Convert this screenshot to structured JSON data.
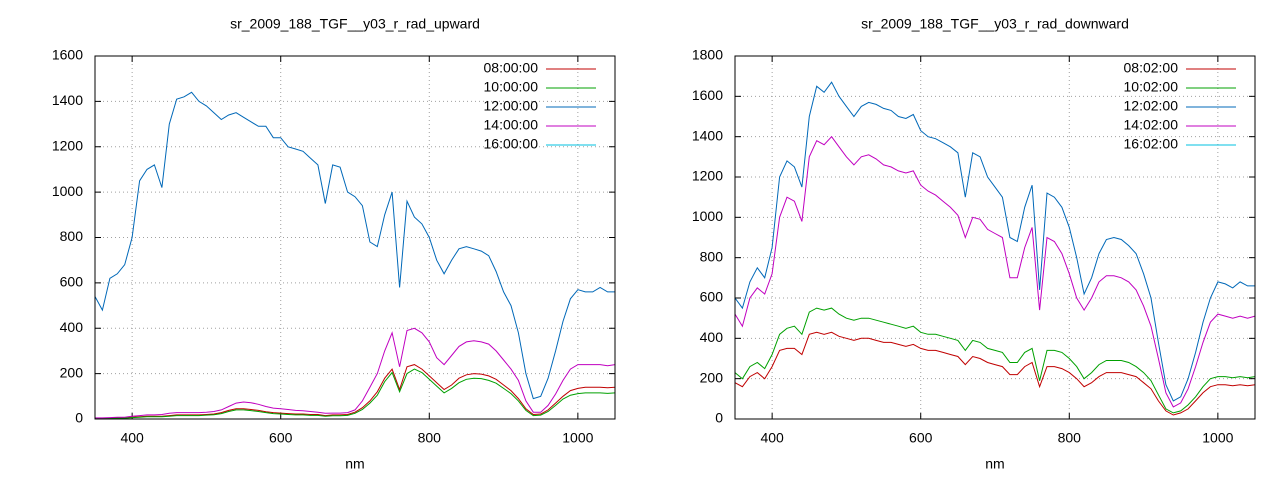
{
  "chart_data": [
    {
      "type": "line",
      "title": "sr_2009_188_TGF__y03_r_rad_upward",
      "x_label": "nm",
      "xlim": [
        350,
        1050
      ],
      "xticks": [
        400,
        600,
        800,
        1000
      ],
      "ylim": [
        0,
        1600
      ],
      "yticks": [
        0,
        200,
        400,
        600,
        800,
        1000,
        1200,
        1400,
        1600
      ],
      "grid": true,
      "legend": "upper-right",
      "x": [
        350,
        360,
        370,
        380,
        390,
        400,
        410,
        420,
        430,
        440,
        450,
        460,
        470,
        480,
        490,
        500,
        510,
        520,
        530,
        540,
        550,
        560,
        570,
        580,
        590,
        600,
        610,
        620,
        630,
        640,
        650,
        660,
        670,
        680,
        690,
        700,
        710,
        720,
        730,
        740,
        750,
        760,
        770,
        780,
        790,
        800,
        810,
        820,
        830,
        840,
        850,
        860,
        870,
        880,
        890,
        900,
        910,
        920,
        930,
        940,
        950,
        960,
        970,
        980,
        990,
        1000,
        1010,
        1020,
        1030,
        1040,
        1050
      ],
      "series": [
        {
          "name": "08:00:00",
          "color": "#c00000",
          "values": [
            3,
            3,
            4,
            5,
            5,
            8,
            10,
            12,
            12,
            12,
            15,
            18,
            18,
            18,
            18,
            20,
            22,
            28,
            38,
            45,
            45,
            42,
            38,
            32,
            28,
            26,
            24,
            22,
            22,
            20,
            20,
            15,
            18,
            18,
            20,
            30,
            50,
            80,
            120,
            180,
            220,
            130,
            230,
            240,
            220,
            190,
            160,
            130,
            150,
            180,
            195,
            200,
            198,
            190,
            175,
            150,
            125,
            90,
            45,
            20,
            22,
            40,
            70,
            100,
            125,
            135,
            140,
            140,
            140,
            138,
            140
          ]
        },
        {
          "name": "10:00:00",
          "color": "#00a000",
          "values": [
            2,
            2,
            3,
            4,
            4,
            6,
            8,
            10,
            10,
            10,
            12,
            15,
            15,
            15,
            15,
            17,
            19,
            24,
            33,
            40,
            40,
            37,
            33,
            28,
            24,
            22,
            20,
            18,
            18,
            16,
            16,
            12,
            14,
            14,
            16,
            25,
            42,
            70,
            105,
            165,
            205,
            120,
            200,
            220,
            205,
            175,
            145,
            115,
            135,
            160,
            175,
            180,
            178,
            170,
            158,
            135,
            112,
            80,
            38,
            15,
            17,
            33,
            60,
            88,
            105,
            112,
            115,
            115,
            115,
            113,
            115
          ]
        },
        {
          "name": "12:00:00",
          "color": "#0068b8",
          "values": [
            540,
            480,
            620,
            640,
            680,
            800,
            1050,
            1100,
            1120,
            1020,
            1300,
            1410,
            1420,
            1440,
            1400,
            1380,
            1350,
            1320,
            1340,
            1350,
            1330,
            1310,
            1290,
            1290,
            1240,
            1240,
            1200,
            1190,
            1180,
            1150,
            1120,
            950,
            1120,
            1110,
            1000,
            980,
            940,
            780,
            760,
            900,
            1000,
            580,
            960,
            890,
            860,
            800,
            700,
            640,
            700,
            750,
            760,
            750,
            740,
            720,
            650,
            560,
            500,
            380,
            200,
            90,
            100,
            180,
            300,
            430,
            530,
            570,
            560,
            560,
            580,
            560,
            560
          ]
        },
        {
          "name": "14:00:00",
          "color": "#c000c0",
          "values": [
            5,
            5,
            6,
            8,
            8,
            12,
            15,
            18,
            18,
            20,
            25,
            28,
            28,
            28,
            28,
            30,
            33,
            40,
            55,
            70,
            75,
            72,
            65,
            55,
            48,
            45,
            42,
            38,
            36,
            33,
            30,
            25,
            26,
            26,
            28,
            40,
            80,
            140,
            200,
            300,
            380,
            230,
            390,
            400,
            380,
            340,
            270,
            240,
            280,
            320,
            340,
            345,
            340,
            330,
            300,
            260,
            220,
            170,
            80,
            30,
            30,
            60,
            110,
            170,
            220,
            240,
            240,
            240,
            240,
            235,
            240
          ]
        },
        {
          "name": "16:00:00",
          "color": "#00c0e0",
          "values": [
            0,
            0,
            0,
            0,
            0,
            0,
            0,
            0,
            0,
            0,
            0,
            0,
            0,
            0,
            0,
            0,
            0,
            0,
            0,
            0,
            0,
            0,
            0,
            0,
            0,
            0,
            0,
            0,
            0,
            0,
            0,
            0,
            0,
            0,
            0,
            0,
            0,
            0,
            0,
            0,
            0,
            0,
            0,
            0,
            0,
            0,
            0,
            0,
            0,
            0,
            0,
            0,
            0,
            0,
            0,
            0,
            0,
            0,
            0,
            0,
            0,
            0,
            0,
            0,
            0,
            0,
            0,
            0,
            0,
            0,
            0
          ]
        }
      ]
    },
    {
      "type": "line",
      "title": "sr_2009_188_TGF__y03_r_rad_downward",
      "x_label": "nm",
      "xlim": [
        350,
        1050
      ],
      "xticks": [
        400,
        600,
        800,
        1000
      ],
      "ylim": [
        0,
        1800
      ],
      "yticks": [
        0,
        200,
        400,
        600,
        800,
        1000,
        1200,
        1400,
        1600,
        1800
      ],
      "grid": true,
      "legend": "upper-right",
      "x": [
        350,
        360,
        370,
        380,
        390,
        400,
        410,
        420,
        430,
        440,
        450,
        460,
        470,
        480,
        490,
        500,
        510,
        520,
        530,
        540,
        550,
        560,
        570,
        580,
        590,
        600,
        610,
        620,
        630,
        640,
        650,
        660,
        670,
        680,
        690,
        700,
        710,
        720,
        730,
        740,
        750,
        760,
        770,
        780,
        790,
        800,
        810,
        820,
        830,
        840,
        850,
        860,
        870,
        880,
        890,
        900,
        910,
        920,
        930,
        940,
        950,
        960,
        970,
        980,
        990,
        1000,
        1010,
        1020,
        1030,
        1040,
        1050
      ],
      "series": [
        {
          "name": "08:02:00",
          "color": "#c00000",
          "values": [
            180,
            160,
            210,
            230,
            200,
            260,
            340,
            350,
            350,
            320,
            420,
            430,
            420,
            430,
            410,
            400,
            390,
            400,
            400,
            390,
            380,
            380,
            370,
            360,
            370,
            350,
            340,
            340,
            330,
            320,
            310,
            270,
            310,
            300,
            280,
            270,
            260,
            220,
            220,
            260,
            280,
            160,
            260,
            260,
            250,
            230,
            200,
            160,
            180,
            210,
            230,
            230,
            230,
            220,
            210,
            180,
            150,
            90,
            40,
            20,
            30,
            50,
            90,
            130,
            160,
            170,
            170,
            165,
            170,
            165,
            170
          ]
        },
        {
          "name": "10:02:00",
          "color": "#00a000",
          "values": [
            230,
            200,
            260,
            280,
            250,
            320,
            420,
            450,
            460,
            420,
            530,
            550,
            540,
            550,
            520,
            500,
            490,
            500,
            500,
            490,
            480,
            470,
            460,
            450,
            460,
            430,
            420,
            420,
            410,
            400,
            390,
            340,
            390,
            380,
            350,
            340,
            330,
            280,
            280,
            330,
            350,
            190,
            340,
            340,
            330,
            300,
            260,
            200,
            230,
            270,
            290,
            290,
            290,
            280,
            260,
            230,
            190,
            120,
            50,
            30,
            40,
            70,
            110,
            160,
            200,
            210,
            210,
            205,
            210,
            205,
            210
          ]
        },
        {
          "name": "12:02:00",
          "color": "#0068b8",
          "values": [
            600,
            550,
            680,
            750,
            700,
            850,
            1200,
            1280,
            1250,
            1150,
            1500,
            1650,
            1620,
            1670,
            1600,
            1550,
            1500,
            1550,
            1570,
            1560,
            1540,
            1530,
            1500,
            1490,
            1510,
            1430,
            1400,
            1390,
            1370,
            1350,
            1320,
            1100,
            1320,
            1300,
            1200,
            1150,
            1100,
            900,
            880,
            1050,
            1160,
            640,
            1120,
            1100,
            1050,
            950,
            800,
            620,
            700,
            820,
            890,
            900,
            890,
            860,
            820,
            720,
            600,
            380,
            170,
            90,
            110,
            200,
            330,
            480,
            600,
            680,
            670,
            650,
            680,
            660,
            660
          ]
        },
        {
          "name": "14:02:00",
          "color": "#c000c0",
          "values": [
            520,
            460,
            600,
            650,
            620,
            720,
            1000,
            1100,
            1080,
            980,
            1300,
            1380,
            1360,
            1400,
            1350,
            1300,
            1260,
            1300,
            1310,
            1290,
            1260,
            1250,
            1230,
            1220,
            1230,
            1160,
            1130,
            1110,
            1080,
            1050,
            1010,
            900,
            1000,
            990,
            940,
            920,
            900,
            700,
            700,
            850,
            950,
            540,
            900,
            880,
            820,
            720,
            600,
            540,
            600,
            680,
            710,
            710,
            700,
            680,
            640,
            560,
            460,
            300,
            130,
            60,
            80,
            150,
            260,
            380,
            480,
            520,
            510,
            500,
            510,
            500,
            510
          ]
        },
        {
          "name": "16:02:00",
          "color": "#00c0e0",
          "values": [
            0,
            0,
            0,
            0,
            0,
            0,
            0,
            0,
            0,
            0,
            0,
            0,
            0,
            0,
            0,
            0,
            0,
            0,
            0,
            0,
            0,
            0,
            0,
            0,
            0,
            0,
            0,
            0,
            0,
            0,
            0,
            0,
            0,
            0,
            0,
            0,
            0,
            0,
            0,
            0,
            0,
            0,
            0,
            0,
            0,
            0,
            0,
            0,
            0,
            0,
            0,
            0,
            0,
            0,
            0,
            0,
            0,
            0,
            0,
            0,
            0,
            0,
            0,
            0,
            0,
            0,
            0,
            0,
            0,
            0,
            0
          ]
        }
      ]
    }
  ]
}
